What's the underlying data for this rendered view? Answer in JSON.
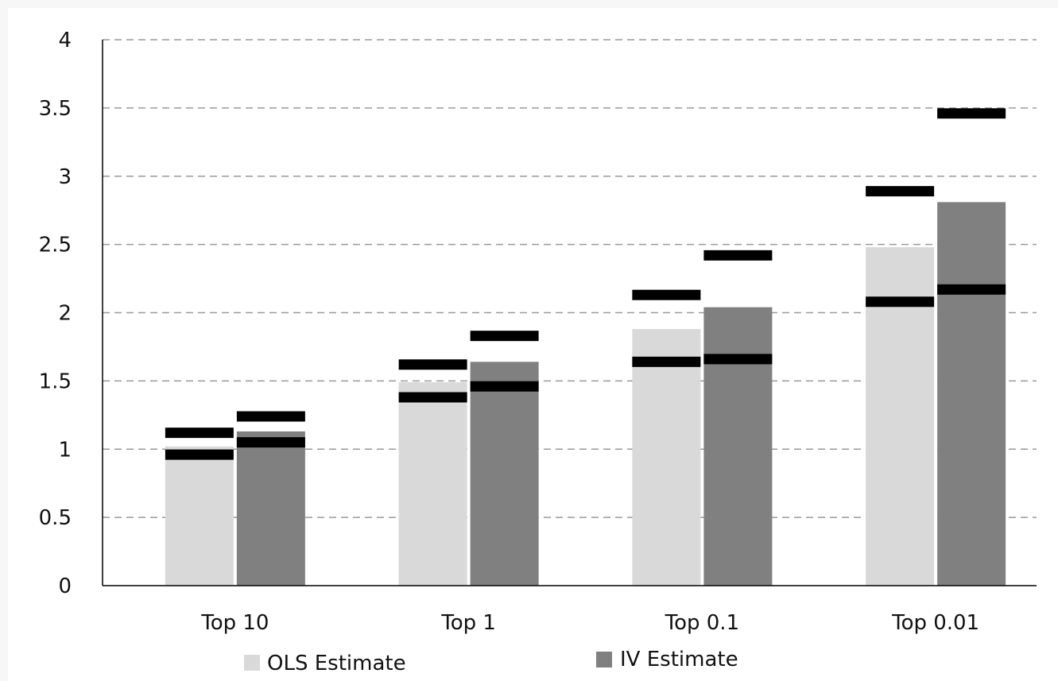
{
  "chart_data": {
    "type": "bar",
    "categories": [
      "Top 10",
      "Top 1",
      "Top 0.1",
      "Top 0.01"
    ],
    "series": [
      {
        "name": "OLS Estimate",
        "color": "#d9d9d9",
        "values": [
          1.02,
          1.49,
          1.88,
          2.48
        ],
        "ci_low": [
          0.96,
          1.38,
          1.64,
          2.08
        ],
        "ci_high": [
          1.12,
          1.62,
          2.13,
          2.89
        ]
      },
      {
        "name": "IV Estimate",
        "color": "#808080",
        "values": [
          1.13,
          1.64,
          2.04,
          2.81
        ],
        "ci_low": [
          1.05,
          1.46,
          1.66,
          2.17
        ],
        "ci_high": [
          1.24,
          1.83,
          2.42,
          3.46
        ]
      }
    ],
    "yticks": [
      "0",
      "0.5",
      "1",
      "1.5",
      "2",
      "2.5",
      "3",
      "3.5",
      "4"
    ],
    "ylim": [
      0,
      4
    ],
    "grid": true,
    "legend": "bottom",
    "xlabel": "",
    "ylabel": "",
    "title": "",
    "ci_color": "#000000"
  }
}
